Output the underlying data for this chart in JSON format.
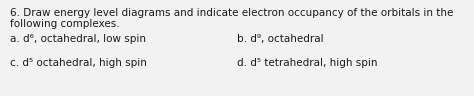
{
  "title_line1": "6. Draw energy level diagrams and indicate electron occupancy of the orbitals in the",
  "title_line2": "following complexes.",
  "item_a": "a. d⁶, octahedral, low spin",
  "item_b": "b. d⁹, octahedral",
  "item_c": "c. d⁵ octahedral, high spin",
  "item_d": "d. d⁵ tetrahedral, high spin",
  "bg_color": "#f2f2f2",
  "text_color": "#1a1a1a",
  "font_size_title": 7.5,
  "font_size_items": 7.5
}
